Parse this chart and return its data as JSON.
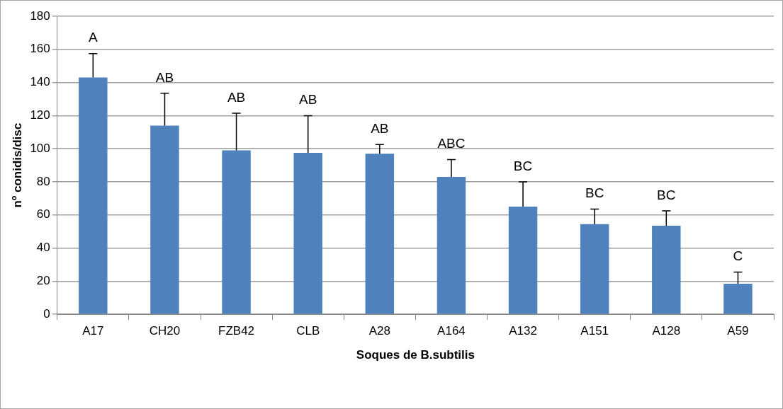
{
  "chart_data": {
    "type": "bar",
    "xlabel": "Soques de B.subtilis",
    "ylabel": "nº conidis/disc",
    "categories": [
      "A17",
      "CH20",
      "FZB42",
      "CLB",
      "A28",
      "A164",
      "A132",
      "A151",
      "A128",
      "A59"
    ],
    "values": [
      143,
      114,
      99,
      97.5,
      97,
      83,
      65,
      54.5,
      53.5,
      18.5
    ],
    "errors": [
      [
        143,
        157.5
      ],
      [
        114,
        133.5
      ],
      [
        99,
        121.5
      ],
      [
        97.5,
        120
      ],
      [
        97,
        102.5
      ],
      [
        83,
        93.5
      ],
      [
        65,
        80
      ],
      [
        54.5,
        63.5
      ],
      [
        53.5,
        62.5
      ],
      [
        18.5,
        25.5
      ]
    ],
    "color": "#4f81bd",
    "ylim": [
      0,
      180
    ],
    "yticks": [
      0,
      20,
      40,
      60,
      80,
      100,
      120,
      140,
      160,
      180
    ],
    "grid": "y",
    "annotations": [
      {
        "text": "A",
        "x": "A17",
        "y": 157.5
      },
      {
        "text": "AB",
        "x": "CH20",
        "y": 133.5
      },
      {
        "text": "AB",
        "x": "FZB42",
        "y": 121.5
      },
      {
        "text": "AB",
        "x": "CLB",
        "y": 120
      },
      {
        "text": "AB",
        "x": "A28",
        "y": 102.5
      },
      {
        "text": "ABC",
        "x": "A164",
        "y": 93.5
      },
      {
        "text": "BC",
        "x": "A132",
        "y": 80
      },
      {
        "text": "BC",
        "x": "A151",
        "y": 63.5
      },
      {
        "text": "BC",
        "x": "A128",
        "y": 62.5
      },
      {
        "text": "C",
        "x": "A59",
        "y": 25.5
      }
    ]
  }
}
